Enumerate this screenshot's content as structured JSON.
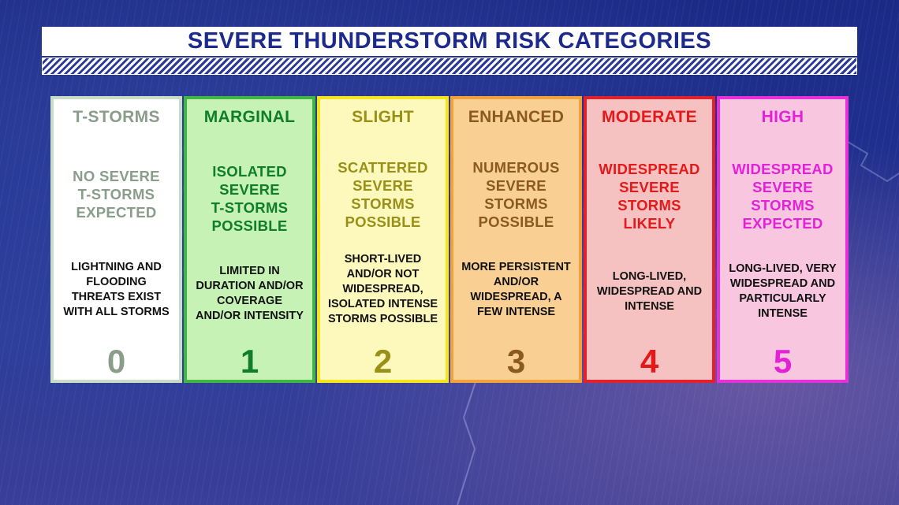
{
  "title": "SEVERE THUNDERSTORM RISK CATEGORIES",
  "categories": [
    {
      "name": "T-STORMS",
      "risk": [
        "NO SEVERE",
        "T-STORMS",
        "EXPECTED"
      ],
      "description": [
        "LIGHTNING AND",
        "FLOODING",
        "THREATS EXIST",
        "WITH ALL STORMS"
      ],
      "level": "0"
    },
    {
      "name": "MARGINAL",
      "risk": [
        "ISOLATED",
        "SEVERE",
        "T-STORMS",
        "POSSIBLE"
      ],
      "description": [
        "LIMITED IN",
        "DURATION AND/OR",
        "COVERAGE",
        "AND/OR INTENSITY"
      ],
      "level": "1"
    },
    {
      "name": "SLIGHT",
      "risk": [
        "SCATTERED",
        "SEVERE",
        "STORMS",
        "POSSIBLE"
      ],
      "description": [
        "SHORT-LIVED",
        "AND/OR NOT",
        "WIDESPREAD,",
        "ISOLATED INTENSE",
        "STORMS POSSIBLE"
      ],
      "level": "2"
    },
    {
      "name": "ENHANCED",
      "risk": [
        "NUMEROUS",
        "SEVERE",
        "STORMS",
        "POSSIBLE"
      ],
      "description": [
        "MORE PERSISTENT",
        "AND/OR",
        "WIDESPREAD, A",
        "FEW INTENSE"
      ],
      "level": "3"
    },
    {
      "name": "MODERATE",
      "risk": [
        "WIDESPREAD",
        "SEVERE",
        "STORMS",
        "LIKELY"
      ],
      "description": [
        "LONG-LIVED,",
        "WIDESPREAD AND",
        "INTENSE"
      ],
      "level": "4"
    },
    {
      "name": "HIGH",
      "risk": [
        "WIDESPREAD",
        "SEVERE",
        "STORMS",
        "EXPECTED"
      ],
      "description": [
        "LONG-LIVED, VERY",
        "WIDESPREAD AND",
        "PARTICULARLY",
        "INTENSE"
      ],
      "level": "5"
    }
  ],
  "colors": {
    "title_text": "#1c2a8e",
    "t_storms": "#8a9c8a",
    "marginal": "#0f7d2a",
    "slight": "#99901a",
    "enhanced": "#8a5a22",
    "moderate": "#e41a1a",
    "high": "#e521d8"
  }
}
